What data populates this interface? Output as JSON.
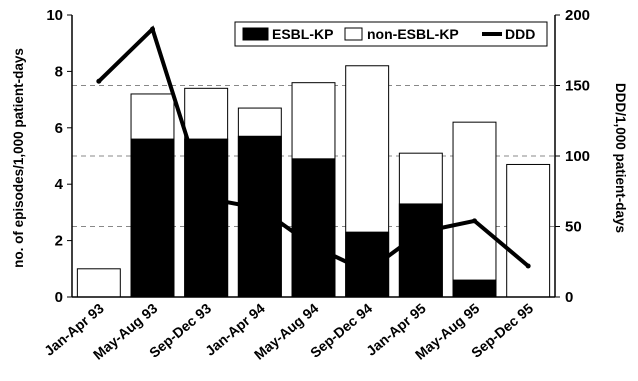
{
  "chart_data": {
    "type": "bar",
    "categories": [
      "Jan-Apr 93",
      "May-Aug 93",
      "Sep-Dec 93",
      "Jan-Apr 94",
      "May-Aug 94",
      "Sep-Dec 94",
      "Jan-Apr 95",
      "May-Aug 95",
      "Sep-Dec 95"
    ],
    "series": [
      {
        "name": "ESBL-KP",
        "kind": "stacked-bar",
        "axis": "left",
        "color": "#000000",
        "values": [
          0,
          5.6,
          5.6,
          5.7,
          4.9,
          2.3,
          3.3,
          0.6,
          0
        ]
      },
      {
        "name": "non-ESBL-KP",
        "kind": "stacked-bar",
        "axis": "left",
        "color": "#ffffff",
        "values": [
          1.0,
          1.6,
          1.8,
          1.0,
          2.7,
          5.9,
          1.8,
          5.6,
          4.7
        ]
      },
      {
        "name": "DDD",
        "kind": "line",
        "axis": "right",
        "color": "#000000",
        "values": [
          153,
          190,
          70,
          63,
          36,
          18,
          46,
          54,
          22
        ]
      }
    ],
    "ylabel": "no. of episodes/1,000 patient-days",
    "y2label": "DDD/1,000 patient-days",
    "ylim": [
      0,
      10
    ],
    "y2lim": [
      0,
      200
    ],
    "yticks": [
      "0",
      "2",
      "4",
      "6",
      "8",
      "10"
    ],
    "y2ticks": [
      "0",
      "50",
      "100",
      "150",
      "200"
    ],
    "legend_position": "top-right",
    "gridlines": "dashed at 2.5 intervals"
  }
}
